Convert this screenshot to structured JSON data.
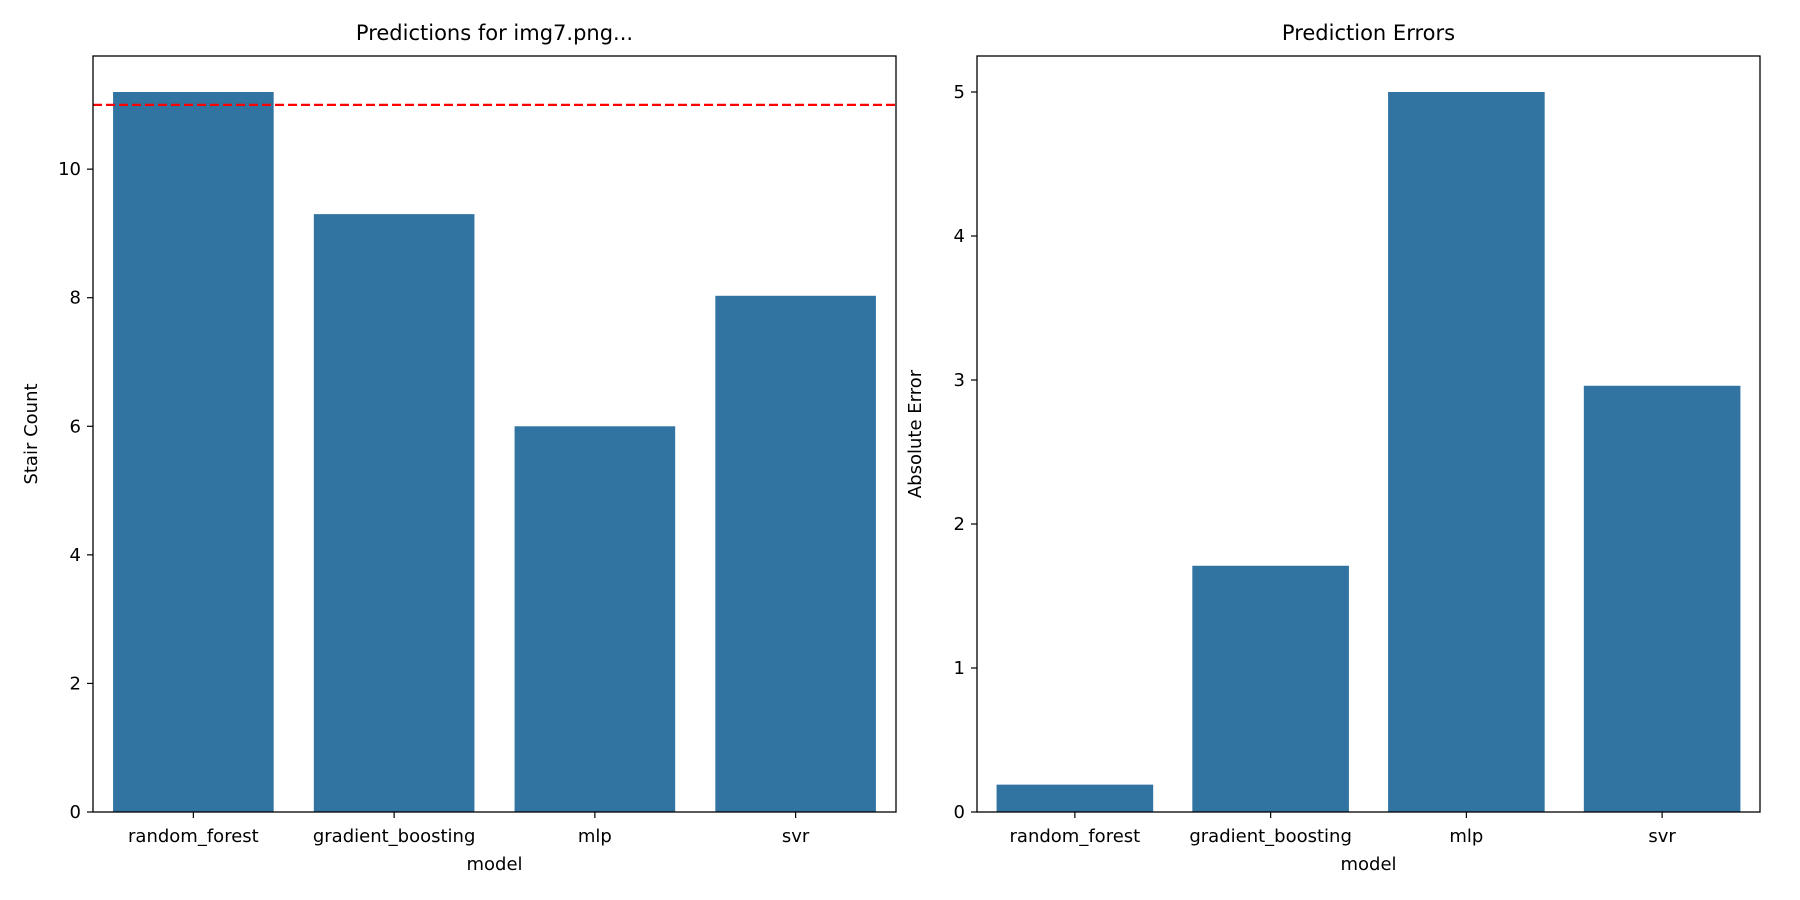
{
  "chart_data": [
    {
      "type": "bar",
      "title": "Predictions for img7.png...",
      "xlabel": "model",
      "ylabel": "Stair Count",
      "categories": [
        "random_forest",
        "gradient_boosting",
        "mlp",
        "svr"
      ],
      "values": [
        11.2,
        9.3,
        6.0,
        8.03
      ],
      "ylim": [
        0,
        11.76
      ],
      "yticks": [
        0,
        2,
        4,
        6,
        8,
        10
      ],
      "reference_line": {
        "value": 11,
        "color": "#ff0000",
        "style": "dashed"
      },
      "bar_color": "#3274a1",
      "grid": false,
      "legend": "none"
    },
    {
      "type": "bar",
      "title": "Prediction Errors",
      "xlabel": "model",
      "ylabel": "Absolute Error",
      "categories": [
        "random_forest",
        "gradient_boosting",
        "mlp",
        "svr"
      ],
      "values": [
        0.19,
        1.71,
        5.0,
        2.96
      ],
      "ylim": [
        0,
        5.25
      ],
      "yticks": [
        0,
        1,
        2,
        3,
        4,
        5
      ],
      "bar_color": "#3274a1",
      "grid": false,
      "legend": "none"
    }
  ]
}
